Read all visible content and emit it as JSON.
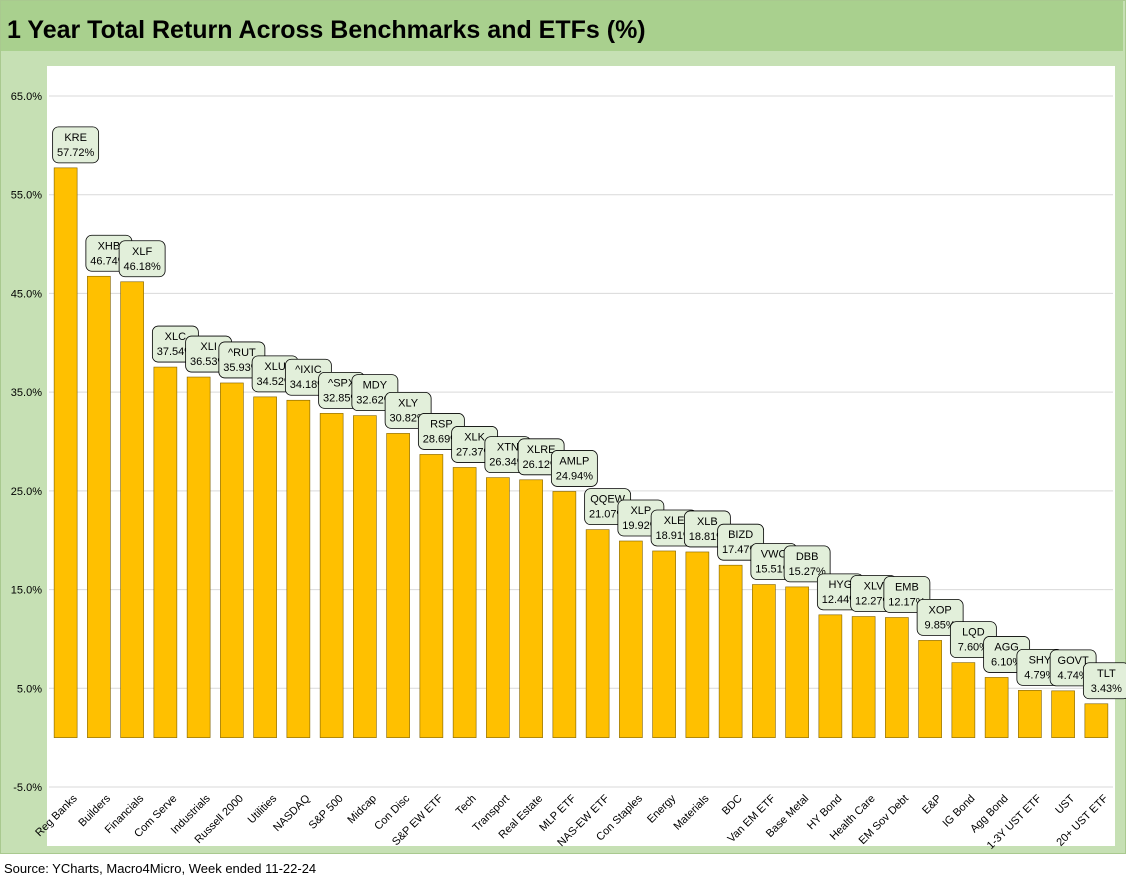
{
  "title": "1 Year Total Return Across Benchmarks and ETFs (%)",
  "source": "Source: YCharts, Macro4Micro, Week ended 11-22-24",
  "colors": {
    "bar": "#ffc000",
    "bar_edge": "#7f6000",
    "label_bg": "#e2efda",
    "header_bg": "#a9d08e",
    "frame_bg": "#c6e0b4"
  },
  "chart_data": {
    "type": "bar",
    "title": "1 Year Total Return Across Benchmarks and ETFs (%)",
    "xlabel": "",
    "ylabel": "",
    "ylim": [
      -5,
      65
    ],
    "yticks": [
      "65.0%",
      "55.0%",
      "45.0%",
      "35.0%",
      "25.0%",
      "15.0%",
      "5.0%",
      "-5.0%"
    ],
    "ytick_values": [
      65,
      55,
      45,
      35,
      25,
      15,
      5,
      -5
    ],
    "grid": true,
    "categories": [
      "Reg Banks",
      "Builders",
      "Financials",
      "Com Serve",
      "Industrials",
      "Russell 2000",
      "Utilities",
      "NASDAQ",
      "S&P 500",
      "Midcap",
      "Con Disc",
      "S&P EW ETF",
      "Tech",
      "Transport",
      "Real Estate",
      "MLP ETF",
      "NAS-EW ETF",
      "Con Staples",
      "Energy",
      "Materials",
      "BDC",
      "Van EM ETF",
      "Base Metal",
      "HY Bond",
      "Health Care",
      "EM Sov Debt",
      "E&P",
      "IG Bond",
      "Agg Bond",
      "1-3Y UST ETF",
      "UST",
      "20+ UST ETF"
    ],
    "tickers": [
      "KRE",
      "XHB",
      "XLF",
      "XLC",
      "XLI",
      "^RUT",
      "XLU",
      "^IXIC",
      "^SPX",
      "MDY",
      "XLY",
      "RSP",
      "XLK",
      "XTN",
      "XLRE",
      "AMLP",
      "QQEW",
      "XLP",
      "XLE",
      "XLB",
      "BIZD",
      "VWO",
      "DBB",
      "HYG",
      "XLV",
      "EMB",
      "XOP",
      "LQD",
      "AGG",
      "SHY",
      "GOVT",
      "TLT"
    ],
    "values": [
      57.72,
      46.74,
      46.18,
      37.54,
      36.53,
      35.93,
      34.52,
      34.18,
      32.85,
      32.62,
      30.82,
      28.69,
      27.37,
      26.34,
      26.12,
      24.94,
      21.07,
      19.92,
      18.91,
      18.81,
      17.47,
      15.51,
      15.27,
      12.44,
      12.27,
      12.17,
      9.85,
      7.6,
      6.1,
      4.79,
      4.74,
      3.43
    ],
    "value_labels": [
      "57.72%",
      "46.74%",
      "46.18%",
      "37.54%",
      "36.53%",
      "35.93%",
      "34.52%",
      "34.18%",
      "32.85%",
      "32.62%",
      "30.82%",
      "28.69%",
      "27.37%",
      "26.34%",
      "26.12%",
      "24.94%",
      "21.07%",
      "19.92%",
      "18.91%",
      "18.81%",
      "17.47%",
      "15.51%",
      "15.27%",
      "12.44%",
      "12.27%",
      "12.17%",
      "9.85%",
      "7.60%",
      "6.10%",
      "4.79%",
      "4.74%",
      "3.43%"
    ]
  }
}
